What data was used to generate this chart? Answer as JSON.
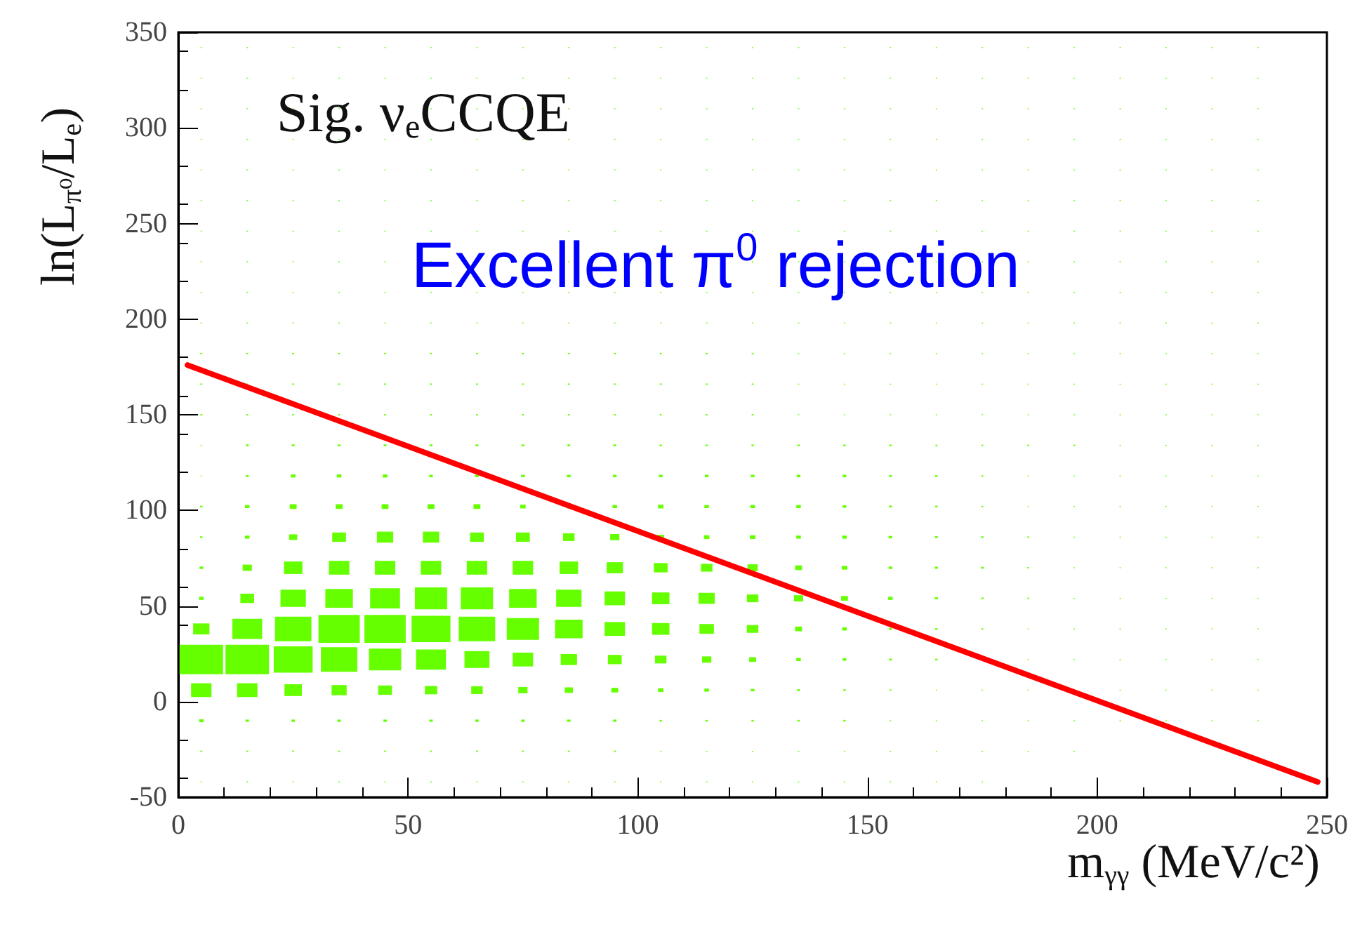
{
  "chart_data": {
    "type": "bubble",
    "xlabel": "m$_{γγ}$ (MeV/c²)",
    "ylabel": "ln(L$_{π⁰}$/L$_{e}$)",
    "annotations": [
      "Sig. ν$_{e}$CCQE",
      "Excellent π$^{0}$ rejection"
    ],
    "x": [
      5,
      15,
      25,
      35,
      45,
      55,
      65,
      75,
      85,
      95,
      105,
      115,
      125,
      135,
      145,
      155,
      165,
      175,
      185,
      195,
      205,
      215,
      225,
      235
    ],
    "xlim": [
      0,
      250
    ],
    "xticks": [
      0,
      50,
      100,
      150,
      200,
      250
    ],
    "ylim": [
      -50,
      350
    ],
    "yticks": [
      -50,
      0,
      50,
      100,
      150,
      200,
      250,
      300,
      350
    ],
    "grid": false,
    "marker": "square",
    "series": [
      {
        "color": "#66ff00",
        "values": [
          -42,
          -42,
          -42,
          -42,
          -42,
          -42,
          -42,
          -42,
          -42,
          -42,
          -42,
          -42,
          -42,
          -42,
          -42,
          -42,
          -42,
          -42,
          null,
          null,
          null,
          null,
          null,
          null
        ],
        "sizes": [
          0.001,
          0.001,
          0.001,
          0.001,
          0.001,
          0.001,
          0.001,
          0.001,
          0.001,
          0.001,
          0.001,
          0.001,
          0.001,
          0.001,
          0.001,
          0.001,
          0.001,
          0.001,
          null,
          null,
          null,
          null,
          null,
          null
        ]
      },
      {
        "color": "#66ff00",
        "values": [
          -26,
          -26,
          -26,
          -26,
          -26,
          -26,
          -26,
          -26,
          -26,
          -26,
          -26,
          -26,
          -26,
          -26,
          -26,
          -26,
          -26,
          -26,
          -26,
          -26,
          null,
          null,
          null,
          null
        ],
        "sizes": [
          0.002,
          0.002,
          0.002,
          0.002,
          0.002,
          0.002,
          0.002,
          0.002,
          0.002,
          0.002,
          0.001,
          0.001,
          0.001,
          0.001,
          0.001,
          0.001,
          0.001,
          0.001,
          0.001,
          0.001,
          null,
          null,
          null,
          null
        ]
      },
      {
        "color": "#66ff00",
        "values": [
          -10,
          -10,
          -10,
          -10,
          -10,
          -10,
          -10,
          -10,
          -10,
          -10,
          -10,
          -10,
          -10,
          -10,
          -10,
          -10,
          -10,
          -10,
          -10,
          -10,
          -10,
          -10,
          -10,
          -10
        ],
        "sizes": [
          0.01,
          0.006,
          0.006,
          0.006,
          0.006,
          0.006,
          0.006,
          0.006,
          0.006,
          0.006,
          0.003,
          0.003,
          0.003,
          0.003,
          0.003,
          0.001,
          0.001,
          0.001,
          0.001,
          0.001,
          0.001,
          0.001,
          0.001,
          0.001
        ]
      },
      {
        "color": "#66ff00",
        "values": [
          6,
          6,
          6,
          6,
          6,
          6,
          6,
          6,
          6,
          6,
          6,
          6,
          6,
          6,
          6,
          6,
          6,
          6,
          6,
          null,
          6,
          6,
          6,
          6
        ],
        "sizes": [
          0.22,
          0.22,
          0.16,
          0.12,
          0.1,
          0.08,
          0.07,
          0.045,
          0.035,
          0.025,
          0.016,
          0.011,
          0.007,
          0.004,
          0.003,
          0.002,
          0.001,
          0.001,
          0.001,
          null,
          0.001,
          0.001,
          0.001,
          0.001
        ]
      },
      {
        "color": "#66ff00",
        "values": [
          22,
          22,
          22,
          22,
          22,
          22,
          22,
          22,
          22,
          22,
          22,
          22,
          22,
          22,
          22,
          22,
          22,
          null,
          22,
          22,
          22,
          22,
          22,
          22
        ],
        "sizes": [
          1,
          1,
          0.8,
          0.7,
          0.55,
          0.47,
          0.33,
          0.22,
          0.14,
          0.1,
          0.07,
          0.045,
          0.025,
          0.011,
          0.007,
          0.004,
          0.003,
          null,
          0.001,
          0.001,
          0.001,
          0.001,
          0.001,
          0.001
        ]
      },
      {
        "color": "#66ff00",
        "values": [
          38,
          38,
          38,
          38,
          38,
          38,
          38,
          38,
          38,
          38,
          38,
          38,
          38,
          38,
          38,
          38,
          38,
          38,
          38,
          38,
          38,
          38,
          38,
          38
        ],
        "sizes": [
          0.14,
          0.47,
          0.7,
          0.9,
          0.9,
          0.8,
          0.7,
          0.55,
          0.4,
          0.22,
          0.16,
          0.11,
          0.07,
          0.025,
          0.011,
          0.005,
          0.003,
          0.002,
          0.001,
          0.001,
          0.001,
          0.001,
          0.001,
          0.001
        ]
      },
      {
        "color": "#66ff00",
        "values": [
          54,
          54,
          54,
          54,
          54,
          54,
          54,
          54,
          54,
          54,
          54,
          54,
          54,
          54,
          54,
          54,
          54,
          54,
          54,
          54,
          54,
          54,
          54,
          54
        ],
        "sizes": [
          0.011,
          0.1,
          0.34,
          0.4,
          0.47,
          0.55,
          0.55,
          0.4,
          0.34,
          0.22,
          0.16,
          0.14,
          0.07,
          0.045,
          0.025,
          0.011,
          0.005,
          0.003,
          0.002,
          0.001,
          0.001,
          0.001,
          0.001,
          0.001
        ]
      },
      {
        "color": "#66ff00",
        "values": [
          70,
          70,
          70,
          70,
          70,
          70,
          70,
          70,
          70,
          70,
          70,
          70,
          70,
          70,
          70,
          70,
          70,
          70,
          70,
          70,
          70,
          70,
          70,
          70
        ],
        "sizes": [
          0.007,
          0.045,
          0.18,
          0.22,
          0.22,
          0.22,
          0.22,
          0.22,
          0.18,
          0.14,
          0.1,
          0.07,
          0.055,
          0.025,
          0.016,
          0.007,
          0.005,
          0.004,
          0.002,
          0.001,
          0.001,
          0.001,
          0.001,
          0.001
        ]
      },
      {
        "color": "#66ff00",
        "values": [
          86,
          86,
          86,
          86,
          86,
          86,
          86,
          86,
          86,
          86,
          86,
          86,
          86,
          86,
          86,
          86,
          86,
          86,
          86,
          86,
          86,
          86,
          86,
          86
        ],
        "sizes": [
          0.003,
          0.011,
          0.036,
          0.1,
          0.14,
          0.14,
          0.1,
          0.1,
          0.07,
          0.045,
          0.025,
          0.016,
          0.016,
          0.011,
          0.011,
          0.007,
          0.004,
          0.003,
          0.002,
          0.001,
          0.001,
          0.001,
          0.001,
          0.001
        ]
      },
      {
        "color": "#66ff00",
        "values": [
          102,
          102,
          102,
          102,
          102,
          102,
          102,
          102,
          102,
          102,
          102,
          102,
          102,
          102,
          102,
          102,
          102,
          102,
          102,
          102,
          102,
          102,
          102,
          102
        ],
        "sizes": [
          0.003,
          0.011,
          0.025,
          0.025,
          0.025,
          0.025,
          0.025,
          0.016,
          0.016,
          0.011,
          0.016,
          0.011,
          0.011,
          0.011,
          0.007,
          0.004,
          0.003,
          0.002,
          0.001,
          0.001,
          0.001,
          0.001,
          0.001,
          0.001
        ]
      },
      {
        "color": "#66ff00",
        "values": [
          118,
          118,
          118,
          118,
          118,
          118,
          118,
          118,
          118,
          118,
          118,
          118,
          118,
          118,
          118,
          118,
          118,
          118,
          118,
          118,
          118,
          118,
          118,
          118
        ],
        "sizes": [
          0.001,
          0.004,
          0.011,
          0.011,
          0.011,
          0.007,
          0.007,
          0.007,
          0.007,
          0.007,
          0.007,
          0.007,
          0.007,
          0.007,
          0.007,
          0.004,
          0.003,
          0.002,
          0.001,
          0.001,
          0.001,
          0.001,
          0.001,
          0.001
        ]
      },
      {
        "color": "#66ff00",
        "values": [
          134,
          134,
          134,
          134,
          134,
          134,
          134,
          134,
          134,
          134,
          134,
          134,
          134,
          134,
          134,
          134,
          134,
          134,
          134,
          134,
          134,
          134,
          134,
          134
        ],
        "sizes": [
          0.001,
          0.004,
          0.004,
          0.004,
          0.004,
          0.004,
          0.004,
          0.004,
          0.004,
          0.004,
          0.003,
          0.003,
          0.003,
          0.003,
          0.003,
          0.003,
          0.002,
          0.002,
          0.002,
          0.002,
          0.001,
          0.001,
          0.001,
          0.001
        ]
      },
      {
        "color": "#66ff00",
        "values": [
          150,
          150,
          150,
          150,
          150,
          150,
          150,
          150,
          150,
          150,
          150,
          150,
          150,
          150,
          150,
          150,
          150,
          150,
          150,
          150,
          150,
          150,
          150,
          150
        ],
        "sizes": [
          0.002,
          0.002,
          0.002,
          0.002,
          0.002,
          0.002,
          0.002,
          0.002,
          0.002,
          0.002,
          0.002,
          0.002,
          0.002,
          0.001,
          0.001,
          0.001,
          0.001,
          0.001,
          0.001,
          0.001,
          0.001,
          0.001,
          0.001,
          0.001
        ]
      },
      {
        "color": "#66ff00",
        "values": [
          166,
          166,
          166,
          166,
          166,
          166,
          166,
          166,
          166,
          166,
          166,
          166,
          166,
          166,
          166,
          166,
          166,
          166,
          166,
          166,
          166,
          166,
          166,
          166
        ],
        "sizes": [
          0.002,
          0.002,
          0.002,
          0.002,
          0.002,
          0.002,
          0.002,
          0.002,
          0.002,
          0.002,
          0.002,
          0.002,
          0.002,
          0.001,
          0.001,
          0.001,
          0.001,
          0.001,
          0.001,
          0.001,
          0.001,
          0.001,
          0.001,
          0.001
        ]
      },
      {
        "color": "#66ff00",
        "values": [
          182,
          182,
          182,
          182,
          182,
          182,
          182,
          182,
          182,
          182,
          182,
          182,
          182,
          182,
          182,
          182,
          182,
          182,
          182,
          182,
          182,
          182,
          182,
          182
        ],
        "sizes": [
          0.002,
          0.002,
          0.002,
          0.002,
          0.002,
          0.002,
          0.002,
          0.002,
          0.002,
          0.002,
          0.002,
          0.002,
          0.002,
          0.001,
          0.001,
          0.001,
          0.001,
          0.001,
          0.001,
          0.001,
          0.001,
          0.001,
          0.001,
          0.001
        ]
      },
      {
        "color": "#66ff00",
        "values": [
          198,
          198,
          198,
          198,
          198,
          198,
          198,
          198,
          198,
          198,
          198,
          198,
          198,
          198,
          198,
          198,
          198,
          198,
          198,
          198,
          198,
          198,
          198,
          198
        ],
        "sizes": [
          0.001,
          0.001,
          0.001,
          0.001,
          0.001,
          0.001,
          0.001,
          0.001,
          0.001,
          0.001,
          0.001,
          0.001,
          0.001,
          0.001,
          0.001,
          0.001,
          0.001,
          0.001,
          0.001,
          0.001,
          0.001,
          0.001,
          0.001,
          0.001
        ]
      },
      {
        "color": "#66ff00",
        "values": [
          214,
          214,
          214,
          214,
          214,
          214,
          214,
          214,
          214,
          214,
          214,
          214,
          214,
          214,
          214,
          214,
          214,
          214,
          214,
          214,
          214,
          214,
          214,
          214
        ],
        "sizes": [
          0.001,
          0.001,
          0.001,
          0.001,
          0.001,
          0.001,
          0.001,
          0.001,
          0.001,
          0.001,
          0.001,
          0.001,
          0.001,
          0.001,
          0.001,
          0.001,
          0.001,
          0.001,
          0.001,
          0.001,
          0.001,
          0.001,
          0.001,
          0.001
        ]
      },
      {
        "color": "#66ff00",
        "values": [
          230,
          230,
          230,
          230,
          230,
          230,
          null,
          230,
          230,
          null,
          null,
          null,
          230,
          230,
          230,
          null,
          230,
          230,
          230,
          230,
          230,
          230,
          230,
          230
        ],
        "sizes": [
          0.001,
          0.001,
          0.001,
          0.001,
          0.001,
          0.001,
          null,
          0.001,
          0.001,
          null,
          null,
          null,
          0.001,
          0.001,
          0.001,
          null,
          0.001,
          0.001,
          0.001,
          0.001,
          0.001,
          0.001,
          0.001,
          0.001
        ]
      },
      {
        "color": "#66ff00",
        "values": [
          246,
          246,
          246,
          246,
          246,
          246,
          246,
          246,
          246,
          246,
          246,
          246,
          246,
          246,
          246,
          246,
          246,
          246,
          246,
          246,
          246,
          246,
          246,
          246
        ],
        "sizes": [
          0.001,
          0.001,
          0.001,
          0.001,
          0.001,
          0.001,
          0.001,
          0.001,
          0.001,
          0.001,
          0.001,
          0.001,
          0.001,
          0.001,
          0.001,
          0.001,
          0.001,
          0.001,
          0.001,
          0.001,
          0.001,
          0.001,
          0.001,
          0.001
        ]
      },
      {
        "color": "#66ff00",
        "values": [
          262,
          262,
          262,
          262,
          262,
          262,
          262,
          262,
          262,
          262,
          262,
          262,
          262,
          262,
          262,
          262,
          262,
          262,
          262,
          262,
          262,
          262,
          262,
          262
        ],
        "sizes": [
          0.001,
          0.001,
          0.001,
          0.001,
          0.001,
          0.001,
          0.001,
          0.001,
          0.001,
          0.001,
          0.001,
          0.001,
          0.001,
          0.001,
          0.001,
          0.001,
          0.001,
          0.001,
          0.001,
          0.001,
          0.001,
          0.001,
          0.001,
          0.001
        ]
      },
      {
        "color": "#66ff00",
        "values": [
          278,
          278,
          278,
          278,
          278,
          278,
          278,
          278,
          278,
          278,
          278,
          278,
          278,
          278,
          278,
          278,
          278,
          278,
          278,
          278,
          278,
          278,
          278,
          278
        ],
        "sizes": [
          0.001,
          0.001,
          0.001,
          0.001,
          0.001,
          0.001,
          0.001,
          0.001,
          0.001,
          0.001,
          0.001,
          0.001,
          0.001,
          0.001,
          0.001,
          0.001,
          0.001,
          0.001,
          0.001,
          0.001,
          0.001,
          0.001,
          0.001,
          0.001
        ]
      },
      {
        "color": "#66ff00",
        "values": [
          294,
          294,
          294,
          294,
          294,
          294,
          294,
          294,
          294,
          294,
          294,
          294,
          294,
          294,
          294,
          294,
          294,
          294,
          294,
          294,
          294,
          294,
          294,
          294
        ],
        "sizes": [
          0.001,
          0.001,
          0.001,
          0.001,
          0.001,
          0.001,
          0.001,
          0.001,
          0.001,
          0.001,
          0.001,
          0.001,
          0.001,
          0.001,
          0.001,
          0.001,
          0.001,
          0.001,
          0.001,
          0.001,
          0.001,
          0.001,
          0.001,
          0.001
        ]
      },
      {
        "color": "#66ff00",
        "values": [
          310,
          310,
          310,
          310,
          null,
          310,
          310,
          310,
          310,
          310,
          310,
          310,
          310,
          310,
          310,
          310,
          310,
          310,
          310,
          310,
          310,
          310,
          310,
          310
        ],
        "sizes": [
          0.001,
          0.001,
          0.001,
          0.001,
          null,
          0.001,
          0.001,
          0.001,
          0.001,
          0.001,
          0.001,
          0.001,
          0.001,
          0.001,
          0.001,
          0.001,
          0.001,
          0.001,
          0.001,
          0.001,
          0.001,
          0.001,
          0.001,
          0.001
        ]
      },
      {
        "color": "#66ff00",
        "values": [
          326,
          326,
          326,
          326,
          326,
          326,
          326,
          326,
          326,
          326,
          326,
          326,
          326,
          326,
          326,
          326,
          326,
          326,
          326,
          326,
          326,
          326,
          326,
          326
        ],
        "sizes": [
          0.001,
          0.001,
          0.001,
          0.001,
          0.001,
          0.001,
          0.001,
          0.001,
          0.001,
          0.001,
          0.001,
          0.001,
          0.001,
          0.001,
          0.001,
          0.001,
          0.001,
          0.001,
          0.001,
          0.001,
          0.001,
          0.001,
          0.001,
          0.001
        ]
      },
      {
        "color": "#66ff00",
        "values": [
          342,
          342,
          342,
          342,
          342,
          342,
          342,
          342,
          342,
          342,
          342,
          342,
          342,
          342,
          342,
          342,
          342,
          342,
          342,
          342,
          342,
          342,
          342,
          342
        ],
        "sizes": [
          0.001,
          0.001,
          0.001,
          0.001,
          0.001,
          0.001,
          0.001,
          0.001,
          0.001,
          0.001,
          0.001,
          0.001,
          0.001,
          0.001,
          0.001,
          0.001,
          0.001,
          0.001,
          0.001,
          0.001,
          0.001,
          0.001,
          0.001,
          0.001
        ]
      },
      {
        "type": "line",
        "color": "#ff0000",
        "marker": "none",
        "x": [
          2,
          248
        ],
        "values": [
          176,
          -42
        ]
      }
    ]
  }
}
